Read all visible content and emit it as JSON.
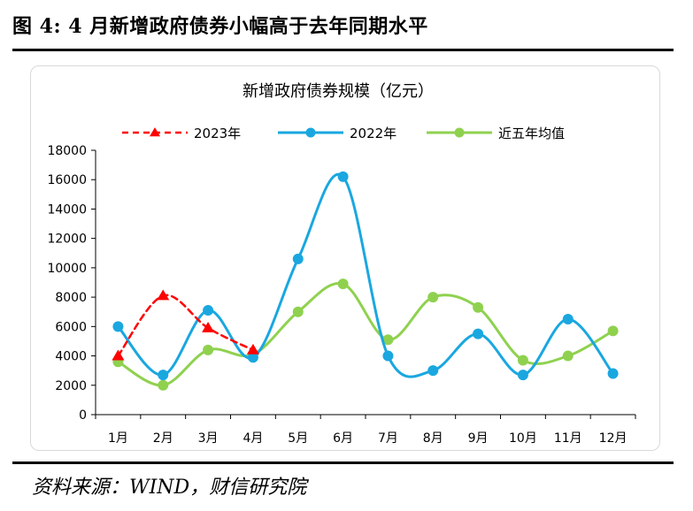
{
  "figure": {
    "title": "图 4:  4 月新增政府债券小幅高于去年同期水平",
    "source": "资料来源：WIND，财信研究院"
  },
  "colors": {
    "series_2023": "#ff0000",
    "series_2022": "#1aa7e0",
    "series_avg": "#8fd14f"
  },
  "chart_data": {
    "type": "line",
    "title": "新增政府债券规模（亿元）",
    "categories": [
      "1月",
      "2月",
      "3月",
      "4月",
      "5月",
      "6月",
      "7月",
      "8月",
      "9月",
      "10月",
      "11月",
      "12月"
    ],
    "ylim": [
      0,
      18000
    ],
    "yticks": [
      0,
      2000,
      4000,
      6000,
      8000,
      10000,
      12000,
      14000,
      16000,
      18000
    ],
    "grid": false,
    "legend_position": "top",
    "series": [
      {
        "name": "2023年",
        "style": "dashed",
        "marker": "triangle",
        "values": [
          4000,
          8100,
          5900,
          4400,
          null,
          null,
          null,
          null,
          null,
          null,
          null,
          null
        ]
      },
      {
        "name": "2022年",
        "style": "solid",
        "marker": "circle",
        "values": [
          6000,
          2700,
          7100,
          3900,
          10600,
          16200,
          4000,
          3000,
          5500,
          2700,
          6500,
          2800
        ]
      },
      {
        "name": "近五年均值",
        "style": "solid",
        "marker": "circle",
        "values": [
          3600,
          2000,
          4400,
          4100,
          7000,
          8900,
          5100,
          8000,
          7300,
          3700,
          4000,
          5700
        ]
      }
    ]
  }
}
